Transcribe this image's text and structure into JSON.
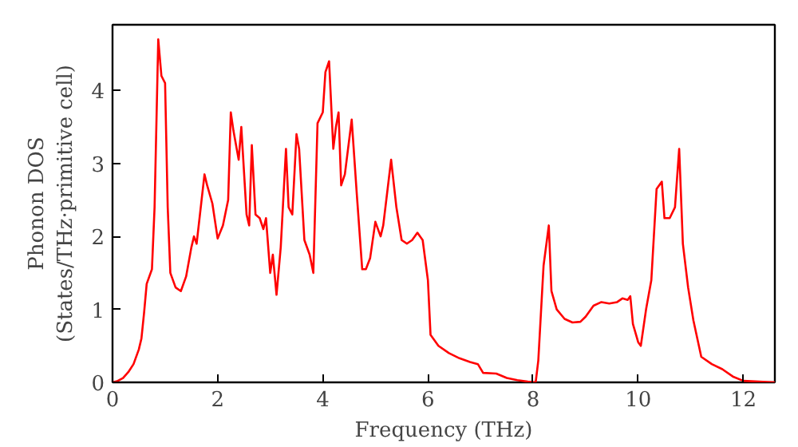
{
  "chart_data": {
    "type": "line",
    "xlabel": "Frequency (THz)",
    "ylabel": "Phonon DOS\n(States/THz·primitive cell)",
    "xlim": [
      0,
      12.6
    ],
    "ylim": [
      0,
      4.9
    ],
    "xticks": [
      0,
      2,
      4,
      6,
      8,
      10,
      12
    ],
    "yticks": [
      0,
      1,
      2,
      3,
      4
    ],
    "grid": false,
    "series": [
      {
        "color": "#ff0000",
        "x": [
          0,
          0.1,
          0.2,
          0.3,
          0.4,
          0.5,
          0.55,
          0.6,
          0.65,
          0.75,
          0.8,
          0.87,
          0.93,
          1.0,
          1.05,
          1.1,
          1.2,
          1.3,
          1.4,
          1.5,
          1.55,
          1.6,
          1.75,
          1.8,
          1.9,
          2.0,
          2.1,
          2.2,
          2.25,
          2.3,
          2.4,
          2.45,
          2.55,
          2.6,
          2.65,
          2.72,
          2.8,
          2.87,
          2.92,
          3.0,
          3.05,
          3.12,
          3.2,
          3.3,
          3.35,
          3.42,
          3.5,
          3.55,
          3.65,
          3.75,
          3.82,
          3.9,
          4.0,
          4.05,
          4.12,
          4.2,
          4.25,
          4.3,
          4.35,
          4.42,
          4.55,
          4.65,
          4.75,
          4.82,
          4.9,
          5.0,
          5.1,
          5.15,
          5.3,
          5.4,
          5.5,
          5.6,
          5.7,
          5.8,
          5.9,
          6.0,
          6.05,
          6.2,
          6.4,
          6.6,
          6.8,
          6.95,
          7.05,
          7.3,
          7.5,
          7.7,
          7.9,
          8.05,
          8.1,
          8.2,
          8.3,
          8.35,
          8.45,
          8.6,
          8.75,
          8.9,
          9.0,
          9.15,
          9.3,
          9.45,
          9.6,
          9.7,
          9.8,
          9.85,
          9.9,
          10.0,
          10.05,
          10.15,
          10.25,
          10.35,
          10.45,
          10.5,
          10.6,
          10.7,
          10.78,
          10.85,
          10.95,
          11.05,
          11.2,
          11.4,
          11.6,
          11.8,
          12.0,
          12.6
        ],
        "values": [
          0,
          0.02,
          0.06,
          0.14,
          0.25,
          0.45,
          0.6,
          0.95,
          1.35,
          1.55,
          2.4,
          4.7,
          4.2,
          4.1,
          2.4,
          1.5,
          1.3,
          1.25,
          1.45,
          1.85,
          2.0,
          1.9,
          2.85,
          2.7,
          2.45,
          1.97,
          2.15,
          2.5,
          3.7,
          3.45,
          3.05,
          3.5,
          2.3,
          2.15,
          3.25,
          2.3,
          2.25,
          2.1,
          2.25,
          1.5,
          1.75,
          1.2,
          1.85,
          3.2,
          2.4,
          2.3,
          3.4,
          3.2,
          1.95,
          1.75,
          1.5,
          3.55,
          3.7,
          4.25,
          4.4,
          3.2,
          3.5,
          3.7,
          2.7,
          2.85,
          3.6,
          2.55,
          1.55,
          1.55,
          1.7,
          2.2,
          2.0,
          2.15,
          3.05,
          2.4,
          1.95,
          1.9,
          1.95,
          2.05,
          1.95,
          1.4,
          0.65,
          0.5,
          0.4,
          0.33,
          0.28,
          0.25,
          0.13,
          0.12,
          0.06,
          0.03,
          0.01,
          0,
          0.3,
          1.6,
          2.15,
          1.25,
          1.0,
          0.87,
          0.82,
          0.83,
          0.9,
          1.05,
          1.1,
          1.08,
          1.1,
          1.15,
          1.13,
          1.18,
          0.8,
          0.55,
          0.5,
          1.0,
          1.4,
          2.65,
          2.75,
          2.25,
          2.25,
          2.4,
          3.2,
          1.9,
          1.3,
          0.85,
          0.35,
          0.25,
          0.18,
          0.08,
          0.02,
          0
        ]
      }
    ]
  }
}
